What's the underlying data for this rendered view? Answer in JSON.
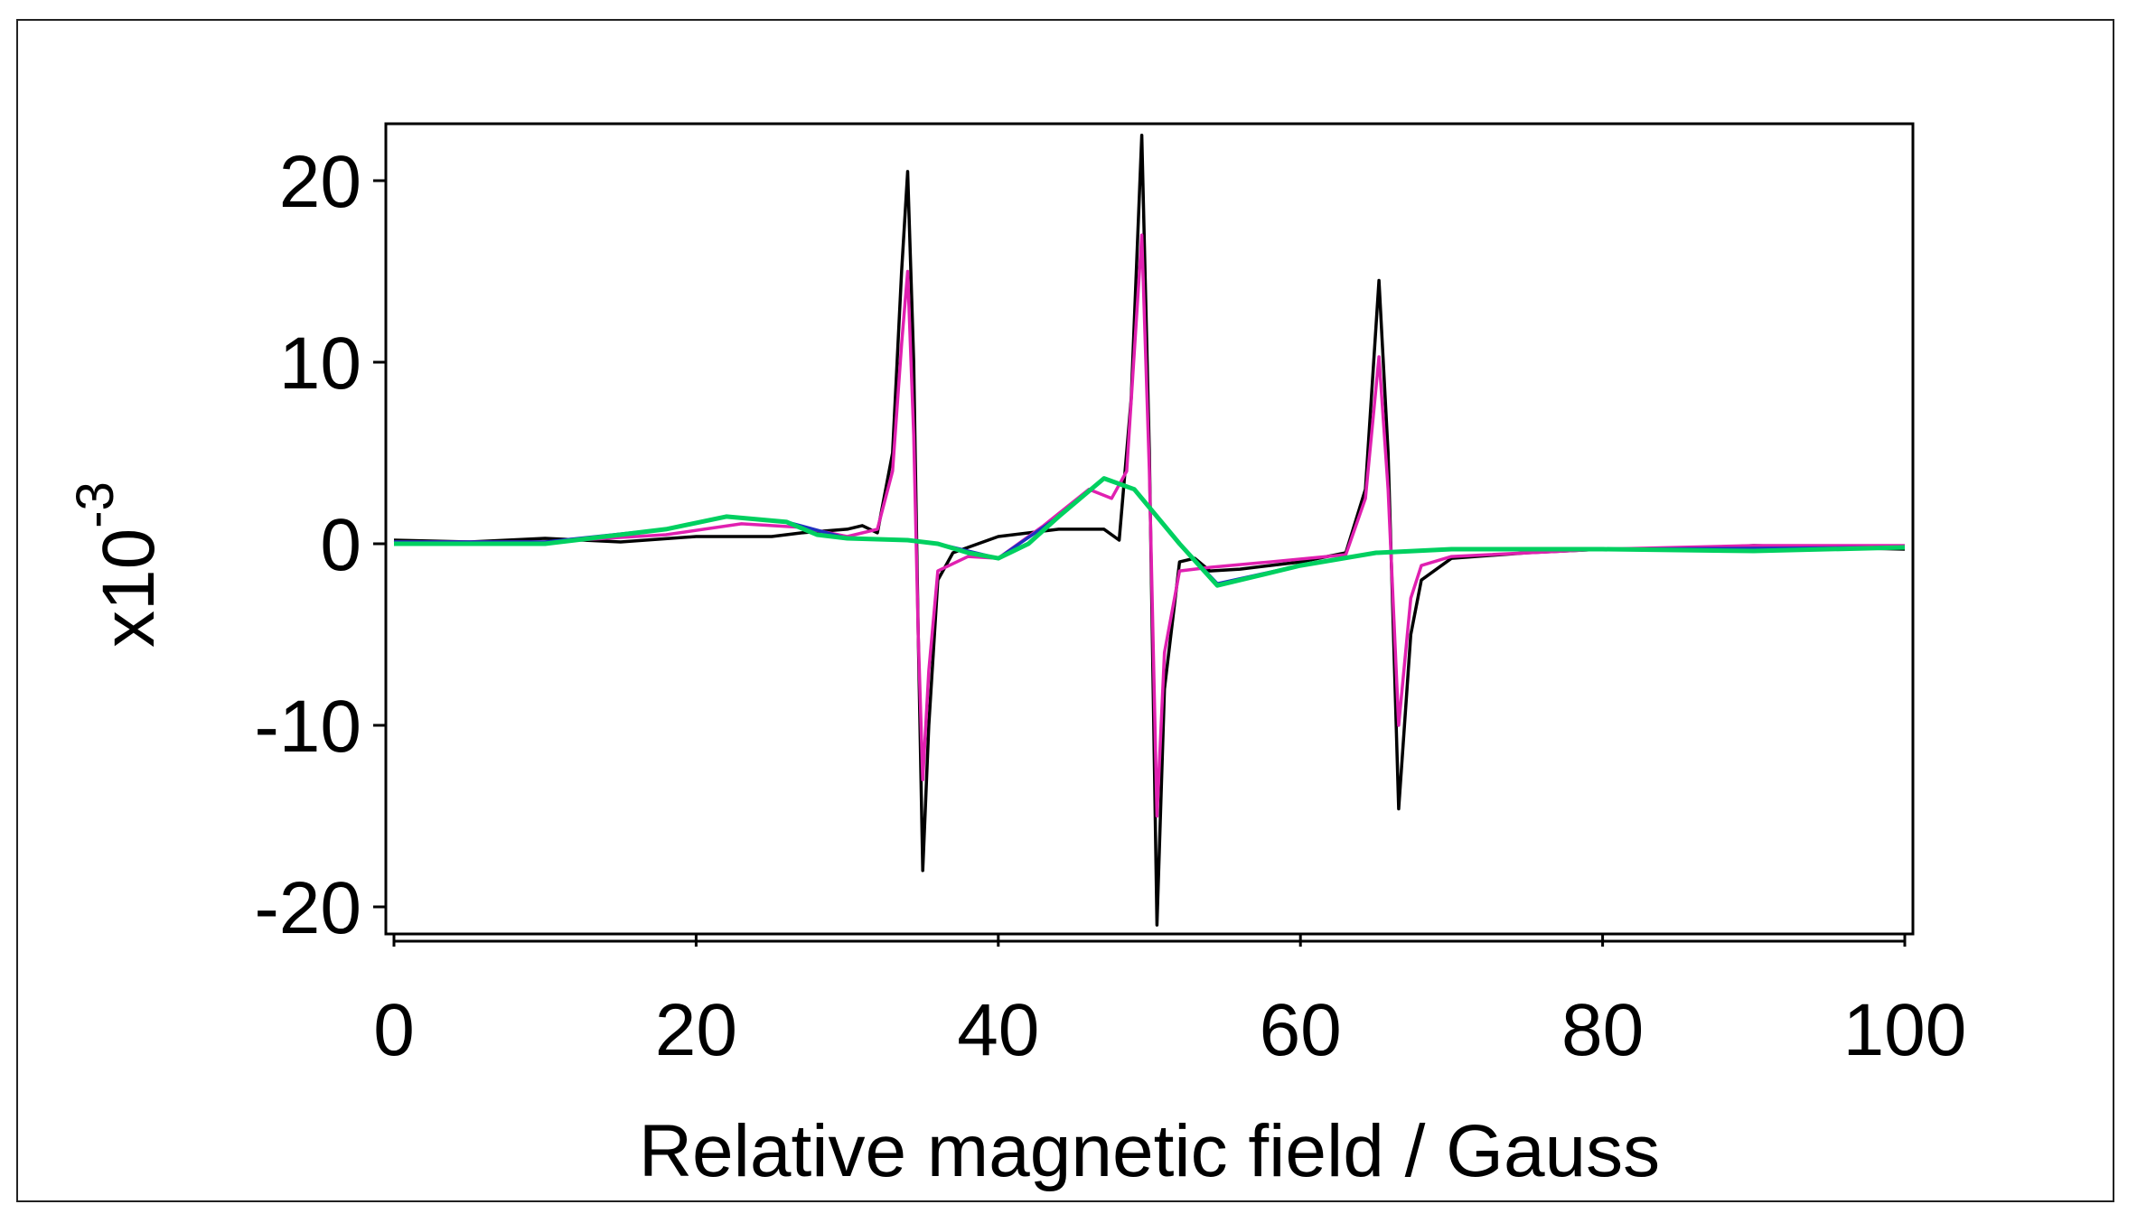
{
  "chart_data": {
    "type": "line",
    "title": "",
    "xlabel": "Relative magnetic field / Gauss",
    "ylabel": "x10",
    "ylabel_exponent": "-3",
    "xlim": [
      0,
      100
    ],
    "ylim": [
      -21.5,
      23
    ],
    "xticks": [
      "0",
      "20",
      "40",
      "60",
      "80",
      "100"
    ],
    "yticks": [
      "-20",
      "-10",
      "0",
      "10",
      "20"
    ],
    "grid": false,
    "legend": "none",
    "series": [
      {
        "color": "#000000",
        "points": [
          [
            0,
            0.2
          ],
          [
            5,
            0.1
          ],
          [
            10,
            0.3
          ],
          [
            15,
            0.1
          ],
          [
            20,
            0.4
          ],
          [
            25,
            0.4
          ],
          [
            27,
            0.6
          ],
          [
            30,
            0.8
          ],
          [
            31,
            1.0
          ],
          [
            32,
            0.6
          ],
          [
            33,
            5
          ],
          [
            33.6,
            15
          ],
          [
            34,
            20.5
          ],
          [
            34.4,
            10
          ],
          [
            34.7,
            -5
          ],
          [
            35,
            -18
          ],
          [
            35.4,
            -10
          ],
          [
            36,
            -2
          ],
          [
            37,
            -0.5
          ],
          [
            40,
            0.4
          ],
          [
            44,
            0.8
          ],
          [
            47,
            0.8
          ],
          [
            48,
            0.2
          ],
          [
            48.8,
            8
          ],
          [
            49.5,
            22.5
          ],
          [
            50,
            5
          ],
          [
            50.5,
            -21
          ],
          [
            51,
            -8
          ],
          [
            52,
            -1
          ],
          [
            53,
            -0.8
          ],
          [
            54,
            -1.5
          ],
          [
            56,
            -1.4
          ],
          [
            60,
            -1.0
          ],
          [
            63,
            -0.5
          ],
          [
            64.3,
            3
          ],
          [
            65.2,
            14.5
          ],
          [
            65.8,
            5
          ],
          [
            66.5,
            -14.6
          ],
          [
            67.3,
            -5
          ],
          [
            68,
            -2
          ],
          [
            70,
            -0.8
          ],
          [
            75,
            -0.5
          ],
          [
            80,
            -0.3
          ],
          [
            85,
            -0.3
          ],
          [
            90,
            -0.1
          ],
          [
            95,
            -0.2
          ],
          [
            100,
            -0.3
          ]
        ]
      },
      {
        "color": "#e020b0",
        "points": [
          [
            0,
            0.1
          ],
          [
            10,
            0.1
          ],
          [
            18,
            0.5
          ],
          [
            23,
            1.1
          ],
          [
            27,
            0.9
          ],
          [
            30,
            0.4
          ],
          [
            32,
            0.8
          ],
          [
            33,
            4
          ],
          [
            33.6,
            11
          ],
          [
            34,
            15
          ],
          [
            34.4,
            6
          ],
          [
            34.7,
            -5
          ],
          [
            35,
            -13
          ],
          [
            35.4,
            -7
          ],
          [
            36,
            -1.5
          ],
          [
            38,
            -0.7
          ],
          [
            40,
            -0.8
          ],
          [
            43,
            1.0
          ],
          [
            46,
            3.0
          ],
          [
            47.5,
            2.5
          ],
          [
            48.5,
            4
          ],
          [
            49.5,
            17
          ],
          [
            50,
            4
          ],
          [
            50.5,
            -15
          ],
          [
            51,
            -6
          ],
          [
            52,
            -1.5
          ],
          [
            54,
            -1.3
          ],
          [
            58,
            -1.0
          ],
          [
            63,
            -0.6
          ],
          [
            64.3,
            2.5
          ],
          [
            65.2,
            10.3
          ],
          [
            65.8,
            3
          ],
          [
            66.5,
            -10
          ],
          [
            67.3,
            -3
          ],
          [
            68,
            -1.2
          ],
          [
            70,
            -0.7
          ],
          [
            80,
            -0.3
          ],
          [
            90,
            -0.1
          ],
          [
            100,
            -0.1
          ]
        ]
      },
      {
        "color": "#2030c0",
        "points": [
          [
            0,
            0.1
          ],
          [
            10,
            0.1
          ],
          [
            18,
            0.8
          ],
          [
            22,
            1.5
          ],
          [
            26,
            1.2
          ],
          [
            30,
            0.3
          ],
          [
            34,
            0.2
          ],
          [
            36,
            0
          ],
          [
            40,
            -0.8
          ],
          [
            44,
            1.5
          ],
          [
            47,
            3.6
          ],
          [
            49,
            3.0
          ],
          [
            52,
            0
          ],
          [
            54.5,
            -2.2
          ],
          [
            60,
            -1.2
          ],
          [
            65,
            -0.5
          ],
          [
            70,
            -0.3
          ],
          [
            80,
            -0.3
          ],
          [
            100,
            -0.2
          ]
        ]
      },
      {
        "color": "#00d060",
        "points": [
          [
            0,
            0
          ],
          [
            10,
            0
          ],
          [
            18,
            0.8
          ],
          [
            22,
            1.5
          ],
          [
            26,
            1.2
          ],
          [
            28,
            0.5
          ],
          [
            30,
            0.3
          ],
          [
            34,
            0.2
          ],
          [
            36,
            0
          ],
          [
            38,
            -0.5
          ],
          [
            40,
            -0.8
          ],
          [
            42,
            0
          ],
          [
            44,
            1.5
          ],
          [
            47,
            3.6
          ],
          [
            49,
            3.0
          ],
          [
            51,
            1.0
          ],
          [
            52,
            0
          ],
          [
            54.5,
            -2.3
          ],
          [
            57,
            -1.8
          ],
          [
            60,
            -1.2
          ],
          [
            65,
            -0.5
          ],
          [
            70,
            -0.3
          ],
          [
            80,
            -0.3
          ],
          [
            90,
            -0.4
          ],
          [
            100,
            -0.2
          ]
        ]
      }
    ]
  }
}
